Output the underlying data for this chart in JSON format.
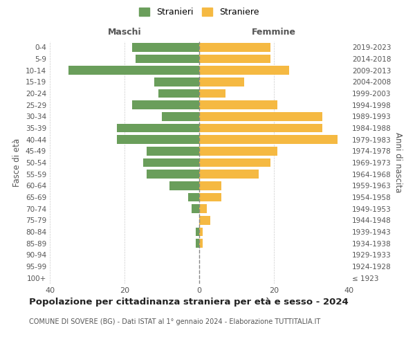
{
  "age_groups": [
    "100+",
    "95-99",
    "90-94",
    "85-89",
    "80-84",
    "75-79",
    "70-74",
    "65-69",
    "60-64",
    "55-59",
    "50-54",
    "45-49",
    "40-44",
    "35-39",
    "30-34",
    "25-29",
    "20-24",
    "15-19",
    "10-14",
    "5-9",
    "0-4"
  ],
  "birth_years": [
    "≤ 1923",
    "1924-1928",
    "1929-1933",
    "1934-1938",
    "1939-1943",
    "1944-1948",
    "1949-1953",
    "1954-1958",
    "1959-1963",
    "1964-1968",
    "1969-1973",
    "1974-1978",
    "1979-1983",
    "1984-1988",
    "1989-1993",
    "1994-1998",
    "1999-2003",
    "2004-2008",
    "2009-2013",
    "2014-2018",
    "2019-2023"
  ],
  "maschi": [
    0,
    0,
    0,
    1,
    1,
    0,
    2,
    3,
    8,
    14,
    15,
    14,
    22,
    22,
    10,
    18,
    11,
    12,
    35,
    17,
    18
  ],
  "femmine": [
    0,
    0,
    0,
    1,
    1,
    3,
    2,
    6,
    6,
    16,
    19,
    21,
    37,
    33,
    33,
    21,
    7,
    12,
    24,
    19,
    19
  ],
  "color_maschi": "#6a9e5b",
  "color_femmine": "#f5b942",
  "title": "Popolazione per cittadinanza straniera per età e sesso - 2024",
  "subtitle": "COMUNE DI SOVERE (BG) - Dati ISTAT al 1° gennaio 2024 - Elaborazione TUTTITALIA.IT",
  "xlabel_left": "Maschi",
  "xlabel_right": "Femmine",
  "ylabel_left": "Fasce di età",
  "ylabel_right": "Anni di nascita",
  "legend_maschi": "Stranieri",
  "legend_femmine": "Straniere",
  "xlim": 40,
  "background_color": "#ffffff",
  "grid_color": "#cccccc"
}
